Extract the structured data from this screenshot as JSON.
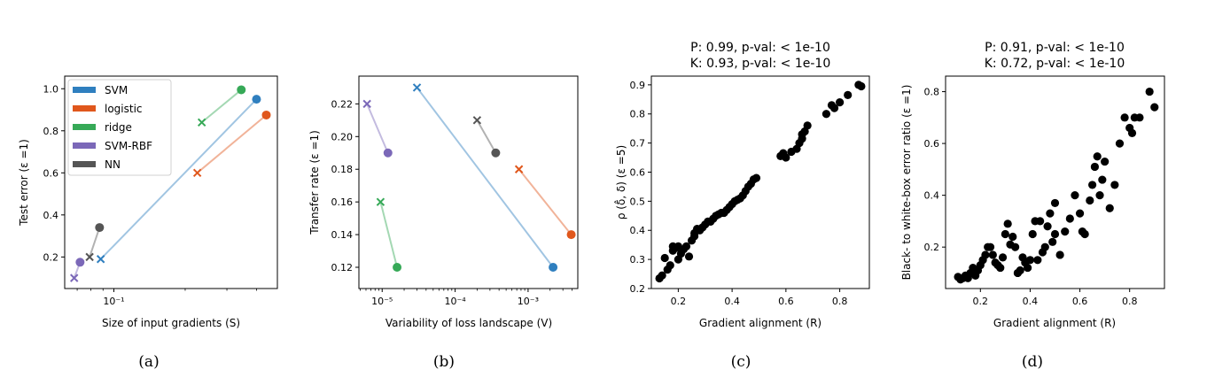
{
  "colors": {
    "SVM": "#2f7fbf",
    "logistic": "#e0571c",
    "ridge": "#36a957",
    "SVM-RBF": "#7b68b8",
    "NN": "#555555"
  },
  "panels": [
    {
      "sublabel": "(a)"
    },
    {
      "sublabel": "(b)"
    },
    {
      "sublabel": "(c)"
    },
    {
      "sublabel": "(d)"
    }
  ],
  "chart_data": [
    {
      "type": "scatter",
      "xlabel": "Size of input gradients (S)",
      "ylabel": "Test error (ε =1)",
      "xscale": "log",
      "xlim": [
        0.062,
        0.49
      ],
      "ylim": [
        0.05,
        1.06
      ],
      "xticks": [
        0.1
      ],
      "xtick_labels": [
        "10⁻¹"
      ],
      "yticks": [
        0.2,
        0.4,
        0.6,
        0.8,
        1.0
      ],
      "ytick_labels": [
        "0.2",
        "0.4",
        "0.6",
        "0.8",
        "1.0"
      ],
      "legend": {
        "position": "top-left",
        "entries": [
          "SVM",
          "logistic",
          "ridge",
          "SVM-RBF",
          "NN"
        ]
      },
      "series": [
        {
          "name": "SVM",
          "from": [
            0.088,
            0.19
          ],
          "to": [
            0.4,
            0.95
          ]
        },
        {
          "name": "logistic",
          "from": [
            0.225,
            0.6
          ],
          "to": [
            0.44,
            0.875
          ]
        },
        {
          "name": "ridge",
          "from": [
            0.235,
            0.84
          ],
          "to": [
            0.345,
            0.995
          ]
        },
        {
          "name": "SVM-RBF",
          "from": [
            0.068,
            0.1
          ],
          "to": [
            0.072,
            0.175
          ]
        },
        {
          "name": "NN",
          "from": [
            0.079,
            0.2
          ],
          "to": [
            0.087,
            0.34
          ]
        }
      ]
    },
    {
      "type": "scatter",
      "xlabel": "Variability of loss landscape (V)",
      "ylabel": "Transfer rate (ε =1)",
      "xscale": "log",
      "xlim": [
        4.8e-06,
        0.0048
      ],
      "ylim": [
        0.107,
        0.237
      ],
      "xticks": [
        1e-05,
        0.0001,
        0.001
      ],
      "xtick_labels": [
        "10⁻⁵",
        "10⁻⁴",
        "10⁻³"
      ],
      "yticks": [
        0.12,
        0.14,
        0.16,
        0.18,
        0.2,
        0.22
      ],
      "ytick_labels": [
        "0.12",
        "0.14",
        "0.16",
        "0.18",
        "0.20",
        "0.22"
      ],
      "series": [
        {
          "name": "SVM",
          "from": [
            3e-05,
            0.23
          ],
          "to": [
            0.0022,
            0.12
          ]
        },
        {
          "name": "logistic",
          "from": [
            0.00075,
            0.18
          ],
          "to": [
            0.0039,
            0.14
          ]
        },
        {
          "name": "ridge",
          "from": [
            9.5e-06,
            0.16
          ],
          "to": [
            1.6e-05,
            0.12
          ]
        },
        {
          "name": "SVM-RBF",
          "from": [
            6.2e-06,
            0.22
          ],
          "to": [
            1.2e-05,
            0.19
          ]
        },
        {
          "name": "NN",
          "from": [
            0.0002,
            0.21
          ],
          "to": [
            0.00036,
            0.19
          ]
        }
      ]
    },
    {
      "type": "scatter",
      "title": [
        "P: 0.99, p-val: < 1e-10",
        "K: 0.93, p-val: < 1e-10"
      ],
      "xlabel": "Gradient alignment (R)",
      "ylabel": "ρ (δ̂, δ) (ε =5)",
      "xlim": [
        0.1,
        0.91
      ],
      "ylim": [
        0.2,
        0.93
      ],
      "xticks": [
        0.2,
        0.4,
        0.6,
        0.8
      ],
      "xtick_labels": [
        "0.2",
        "0.4",
        "0.6",
        "0.8"
      ],
      "yticks": [
        0.2,
        0.3,
        0.4,
        0.5,
        0.6,
        0.7,
        0.8,
        0.9
      ],
      "ytick_labels": [
        "0.2",
        "0.3",
        "0.4",
        "0.5",
        "0.6",
        "0.7",
        "0.8",
        "0.9"
      ],
      "points": [
        [
          0.13,
          0.235
        ],
        [
          0.14,
          0.245
        ],
        [
          0.15,
          0.305
        ],
        [
          0.16,
          0.265
        ],
        [
          0.17,
          0.28
        ],
        [
          0.18,
          0.33
        ],
        [
          0.18,
          0.345
        ],
        [
          0.19,
          0.34
        ],
        [
          0.2,
          0.345
        ],
        [
          0.2,
          0.3
        ],
        [
          0.21,
          0.32
        ],
        [
          0.22,
          0.335
        ],
        [
          0.23,
          0.345
        ],
        [
          0.24,
          0.31
        ],
        [
          0.25,
          0.365
        ],
        [
          0.26,
          0.39
        ],
        [
          0.26,
          0.38
        ],
        [
          0.27,
          0.405
        ],
        [
          0.28,
          0.4
        ],
        [
          0.29,
          0.41
        ],
        [
          0.3,
          0.42
        ],
        [
          0.31,
          0.43
        ],
        [
          0.32,
          0.43
        ],
        [
          0.33,
          0.44
        ],
        [
          0.34,
          0.45
        ],
        [
          0.35,
          0.455
        ],
        [
          0.36,
          0.46
        ],
        [
          0.37,
          0.46
        ],
        [
          0.38,
          0.47
        ],
        [
          0.39,
          0.48
        ],
        [
          0.4,
          0.49
        ],
        [
          0.41,
          0.5
        ],
        [
          0.42,
          0.505
        ],
        [
          0.43,
          0.51
        ],
        [
          0.44,
          0.52
        ],
        [
          0.45,
          0.535
        ],
        [
          0.46,
          0.55
        ],
        [
          0.47,
          0.56
        ],
        [
          0.48,
          0.575
        ],
        [
          0.49,
          0.58
        ],
        [
          0.58,
          0.655
        ],
        [
          0.59,
          0.665
        ],
        [
          0.6,
          0.65
        ],
        [
          0.62,
          0.67
        ],
        [
          0.64,
          0.68
        ],
        [
          0.65,
          0.7
        ],
        [
          0.66,
          0.73
        ],
        [
          0.67,
          0.74
        ],
        [
          0.68,
          0.76
        ],
        [
          0.66,
          0.715
        ],
        [
          0.75,
          0.8
        ],
        [
          0.77,
          0.83
        ],
        [
          0.78,
          0.82
        ],
        [
          0.8,
          0.84
        ],
        [
          0.83,
          0.865
        ],
        [
          0.87,
          0.9
        ],
        [
          0.88,
          0.895
        ]
      ]
    },
    {
      "type": "scatter",
      "title": [
        "P: 0.91, p-val: < 1e-10",
        "K: 0.72, p-val: < 1e-10"
      ],
      "xlabel": "Gradient alignment (R)",
      "ylabel": "Black- to white-box error ratio (ε =1)",
      "xlim": [
        0.06,
        0.94
      ],
      "ylim": [
        0.04,
        0.86
      ],
      "xticks": [
        0.2,
        0.4,
        0.6,
        0.8
      ],
      "xtick_labels": [
        "0.2",
        "0.4",
        "0.6",
        "0.8"
      ],
      "yticks": [
        0.2,
        0.4,
        0.6,
        0.8
      ],
      "ytick_labels": [
        "0.2",
        "0.4",
        "0.6",
        "0.8"
      ],
      "points": [
        [
          0.11,
          0.085
        ],
        [
          0.12,
          0.075
        ],
        [
          0.13,
          0.08
        ],
        [
          0.14,
          0.09
        ],
        [
          0.15,
          0.08
        ],
        [
          0.16,
          0.1
        ],
        [
          0.17,
          0.12
        ],
        [
          0.18,
          0.09
        ],
        [
          0.19,
          0.11
        ],
        [
          0.2,
          0.13
        ],
        [
          0.21,
          0.15
        ],
        [
          0.22,
          0.17
        ],
        [
          0.23,
          0.2
        ],
        [
          0.24,
          0.2
        ],
        [
          0.25,
          0.17
        ],
        [
          0.26,
          0.14
        ],
        [
          0.27,
          0.13
        ],
        [
          0.28,
          0.12
        ],
        [
          0.29,
          0.16
        ],
        [
          0.3,
          0.25
        ],
        [
          0.31,
          0.29
        ],
        [
          0.32,
          0.21
        ],
        [
          0.33,
          0.24
        ],
        [
          0.34,
          0.2
        ],
        [
          0.35,
          0.1
        ],
        [
          0.36,
          0.11
        ],
        [
          0.37,
          0.16
        ],
        [
          0.38,
          0.14
        ],
        [
          0.39,
          0.12
        ],
        [
          0.4,
          0.15
        ],
        [
          0.41,
          0.25
        ],
        [
          0.42,
          0.3
        ],
        [
          0.43,
          0.15
        ],
        [
          0.44,
          0.3
        ],
        [
          0.45,
          0.18
        ],
        [
          0.46,
          0.2
        ],
        [
          0.47,
          0.28
        ],
        [
          0.48,
          0.33
        ],
        [
          0.49,
          0.22
        ],
        [
          0.5,
          0.25
        ],
        [
          0.5,
          0.37
        ],
        [
          0.52,
          0.17
        ],
        [
          0.54,
          0.26
        ],
        [
          0.56,
          0.31
        ],
        [
          0.58,
          0.4
        ],
        [
          0.6,
          0.33
        ],
        [
          0.61,
          0.26
        ],
        [
          0.62,
          0.25
        ],
        [
          0.64,
          0.38
        ],
        [
          0.65,
          0.44
        ],
        [
          0.66,
          0.51
        ],
        [
          0.67,
          0.55
        ],
        [
          0.68,
          0.4
        ],
        [
          0.69,
          0.46
        ],
        [
          0.7,
          0.53
        ],
        [
          0.72,
          0.35
        ],
        [
          0.74,
          0.44
        ],
        [
          0.76,
          0.6
        ],
        [
          0.78,
          0.7
        ],
        [
          0.8,
          0.66
        ],
        [
          0.81,
          0.64
        ],
        [
          0.82,
          0.7
        ],
        [
          0.84,
          0.7
        ],
        [
          0.88,
          0.8
        ],
        [
          0.9,
          0.74
        ]
      ]
    }
  ]
}
